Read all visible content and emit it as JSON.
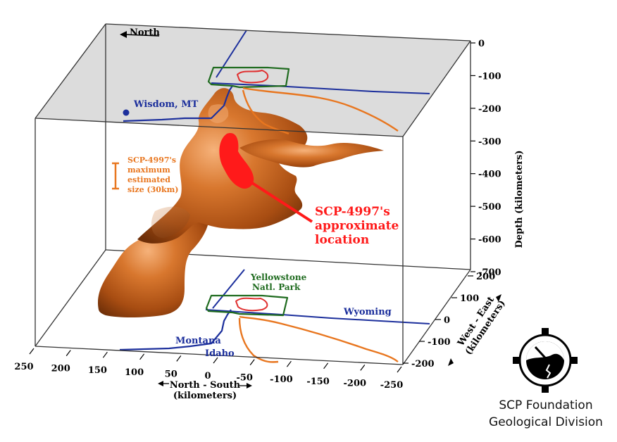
{
  "compass": {
    "north_label": "North"
  },
  "depth_axis": {
    "title": "Depth (kilometers)",
    "ticks": [
      "0",
      "-100",
      "-200",
      "-300",
      "-400",
      "-500",
      "-600",
      "-700"
    ]
  },
  "ns_axis": {
    "title_line1": "North - South",
    "title_line2": "(kilometers)",
    "ticks": [
      "250",
      "200",
      "150",
      "100",
      "50",
      "0",
      "-50",
      "-100",
      "-150",
      "-200",
      "-250"
    ]
  },
  "we_axis": {
    "title_line1": "West - East",
    "title_line2": "(kilometers)",
    "ticks": [
      "200",
      "100",
      "0",
      "-100",
      "-200"
    ]
  },
  "labels": {
    "wisdom": "Wisdom, MT",
    "yellowstone_line1": "Yellowstone",
    "yellowstone_line2": "Natl. Park",
    "wyoming": "Wyoming",
    "montana": "Montana",
    "idaho": "Idaho"
  },
  "scale_note": [
    "SCP-4997's",
    "maximum",
    "estimated",
    "size (30km)"
  ],
  "location_note": [
    "SCP-4997's",
    "approximate",
    "location"
  ],
  "logo": {
    "line1": "SCP Foundation",
    "line2": "Geological Division",
    "icon": "scp-logo-icon"
  },
  "colors": {
    "plume": "#c8641e",
    "state_lines": "#1c2f9c",
    "park": "#1f6b1f",
    "caldera": "#e03030",
    "hotspot_track": "#e8761f",
    "scp_marker": "#ff1a1a",
    "top_plane": "#dcdcdc"
  }
}
